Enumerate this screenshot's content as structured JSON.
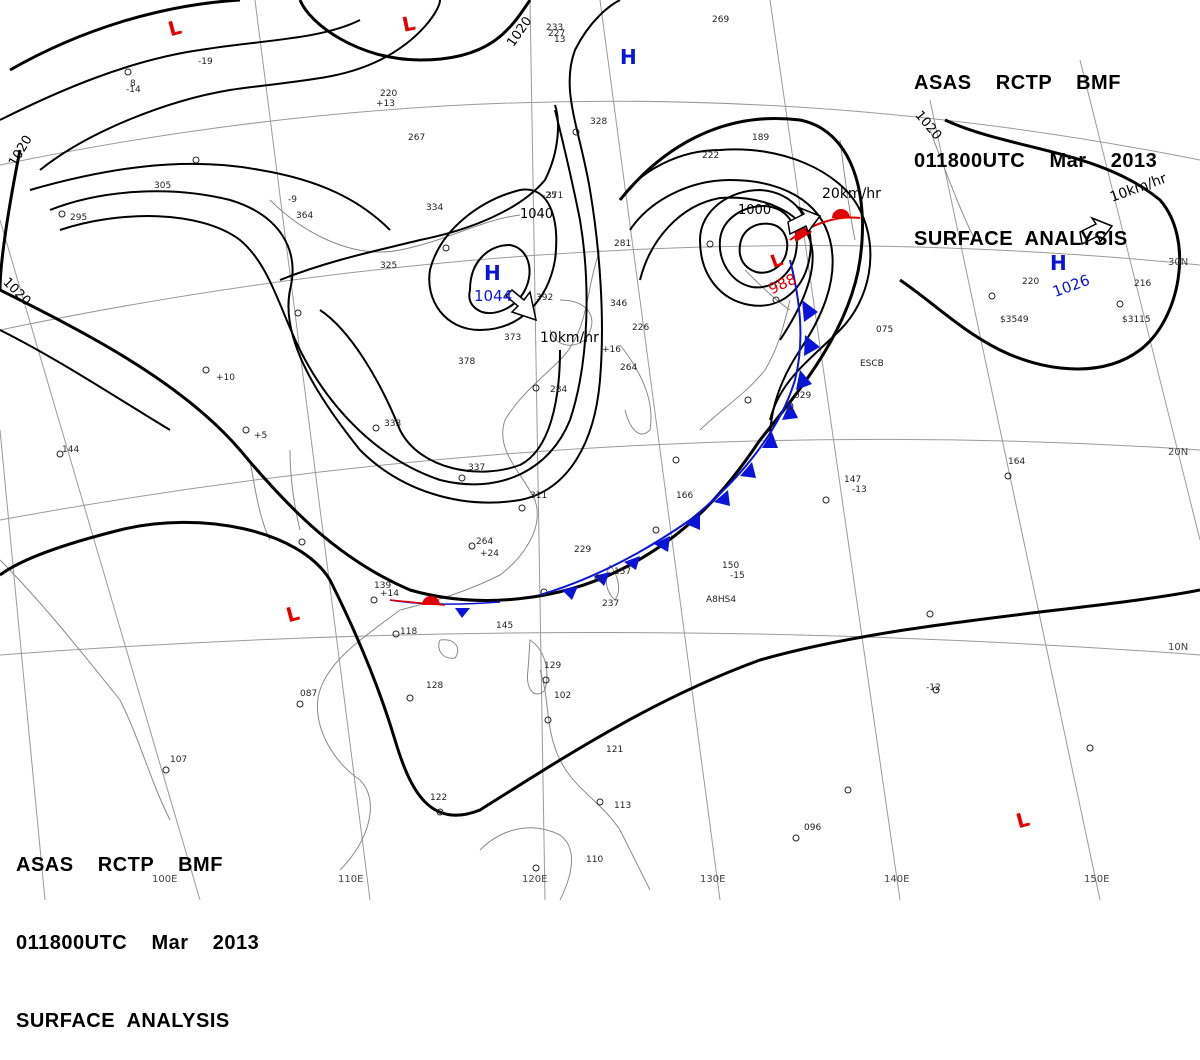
{
  "header": {
    "agency_line": "ASAS    RCTP    BMF",
    "time_line": "011800UTC    Mar    2013",
    "title_line": "SURFACE  ANALYSIS"
  },
  "grid": {
    "longitudes": [
      "110E",
      "120E",
      "130E",
      "140E",
      "150E",
      "100E"
    ],
    "latitudes": [
      "30N",
      "20N",
      "10N"
    ]
  },
  "pressure_centers": [
    {
      "type": "L",
      "label": "L",
      "value": ""
    },
    {
      "type": "L",
      "label": "L",
      "value": ""
    },
    {
      "type": "H",
      "label": "H",
      "value": ""
    },
    {
      "type": "H",
      "label": "H",
      "value": "1044"
    },
    {
      "type": "L",
      "label": "L",
      "value": "988"
    },
    {
      "type": "H",
      "label": "H",
      "value": "1026"
    },
    {
      "type": "L",
      "label": "L",
      "value": ""
    },
    {
      "type": "L",
      "label": "L",
      "value": ""
    }
  ],
  "isobar_labels": [
    "1020",
    "1020",
    "1020",
    "1020",
    "1040",
    "1000"
  ],
  "motion_labels": [
    "10km/hr",
    "20km/hr",
    "10km/hr"
  ],
  "station_values": [
    "233",
    "269",
    "220",
    "13",
    "227",
    "328",
    "267",
    "364",
    "334",
    "371",
    "222",
    "189",
    "305",
    "295",
    "325",
    "392",
    "346",
    "281",
    "378",
    "373",
    "226",
    "264",
    "284",
    "333",
    "337",
    "311",
    "166",
    "229",
    "264",
    "157",
    "237",
    "150",
    "147",
    "164",
    "139",
    "118",
    "145",
    "128",
    "087",
    "129",
    "102",
    "121",
    "113",
    "110",
    "096",
    "122",
    "107",
    "075",
    "144",
    "220",
    "216",
    "029",
    "8",
    "-9",
    "-14",
    "-19",
    "-25",
    "+13",
    "+16",
    "+5",
    "$3549",
    "$3115",
    "A8HS4",
    "ESCB",
    "-13",
    "-15",
    "-12",
    "+10",
    "+14",
    "+24"
  ],
  "colors": {
    "isobar": "#000000",
    "grid": "#9a9a9a",
    "coast": "#8a8a8a",
    "high": "#0a14d8",
    "low": "#e00000",
    "cold_front": "#0a14d8",
    "warm_front": "#e00000"
  }
}
